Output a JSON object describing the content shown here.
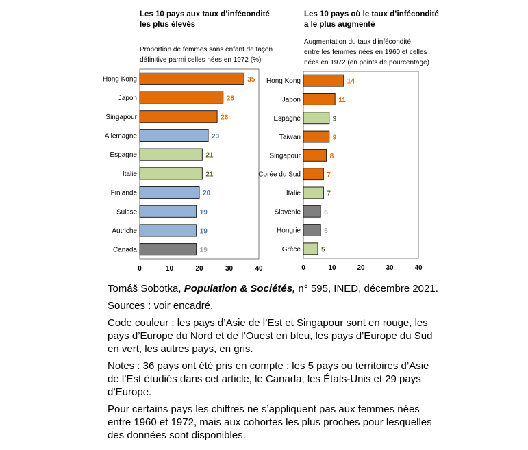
{
  "colors": {
    "east_asia": "#e36c0a",
    "north_west_europe": "#95b3d7",
    "south_europe": "#c3d69b",
    "other": "#7f7f7f"
  },
  "label_colors": {
    "east_asia": "#e36c0a",
    "north_west_europe": "#4f81bd",
    "south_europe": "#4f6228",
    "other": "#a6a6a6"
  },
  "chart_data": [
    {
      "type": "bar",
      "orientation": "horizontal",
      "title": "Les 10 pays aux taux d’infécondité les plus élevés",
      "title_lines": [
        "Les 10 pays aux taux d’infécondité",
        "les plus élevés"
      ],
      "subtitle_lines": [
        "Proportion de femmes sans enfant de façon",
        "définitive parmi celles nées en 1972 (%)"
      ],
      "categories": [
        "Hong Kong",
        "Japon",
        "Singapour",
        "Allemagne",
        "Espagne",
        "Italie",
        "Finlande",
        "Suisse",
        "Autriche",
        "Canada"
      ],
      "values": [
        35,
        28,
        26,
        23,
        21,
        21,
        20,
        19,
        19,
        19
      ],
      "groups": [
        "east_asia",
        "east_asia",
        "east_asia",
        "north_west_europe",
        "south_europe",
        "south_europe",
        "north_west_europe",
        "north_west_europe",
        "north_west_europe",
        "other"
      ],
      "xlim": [
        0,
        40
      ],
      "ticks": [
        "0",
        "10",
        "20",
        "30",
        "40"
      ],
      "grid": false
    },
    {
      "type": "bar",
      "orientation": "horizontal",
      "title": "Les 10 pays où le taux d’infécondité a le plus augmenté",
      "title_lines": [
        "Les 10 pays où le taux d’infécondité",
        "a le plus augmenté"
      ],
      "subtitle_lines": [
        "Augmentation du taux d'infécondité",
        "entre les femmes nées en 1960 et celles",
        "nées en 1972 (en points de pourcentage)"
      ],
      "categories": [
        "Hong Kong",
        "Japon",
        "Espagne",
        "Taiwan",
        "Singapour",
        "Corée du Sud",
        "Italie",
        "Slovénie",
        "Hongrie",
        "Grèce"
      ],
      "values": [
        14,
        11,
        9,
        9,
        8,
        7,
        7,
        6,
        6,
        5
      ],
      "groups": [
        "east_asia",
        "east_asia",
        "south_europe",
        "east_asia",
        "east_asia",
        "east_asia",
        "south_europe",
        "other",
        "other",
        "south_europe"
      ],
      "xlim": [
        0,
        40
      ],
      "ticks": [
        "0",
        "10",
        "20",
        "30",
        "40"
      ],
      "grid": false
    }
  ],
  "notes": {
    "source_author": "Tomáš Sobotka, ",
    "source_journal": "Population & Sociétés,",
    "source_rest": " n° 595, INED, décembre 2021.",
    "sources": "Sources : voir encadré.",
    "color_code": [
      "Code couleur : les pays d’Asie de l’Est et Singapour sont en rouge, les",
      "pays d’Europe du Nord et de l’Ouest en bleu, les pays d’Europe du Sud",
      "en vert, les autres pays, en gris."
    ],
    "notes_text": [
      "Notes : 36 pays ont été pris en compte : les 5 pays ou territoires d’Asie",
      "de l’Est étudiés dans cet article, le Canada, les États-Unis et 29 pays",
      "d’Europe."
    ],
    "caveat": [
      "Pour certains pays les chiffres ne s’appliquent pas aux femmes nées",
      "entre 1960 et 1972, mais aux cohortes les plus proches pour lesquelles",
      "des données sont disponibles."
    ]
  }
}
